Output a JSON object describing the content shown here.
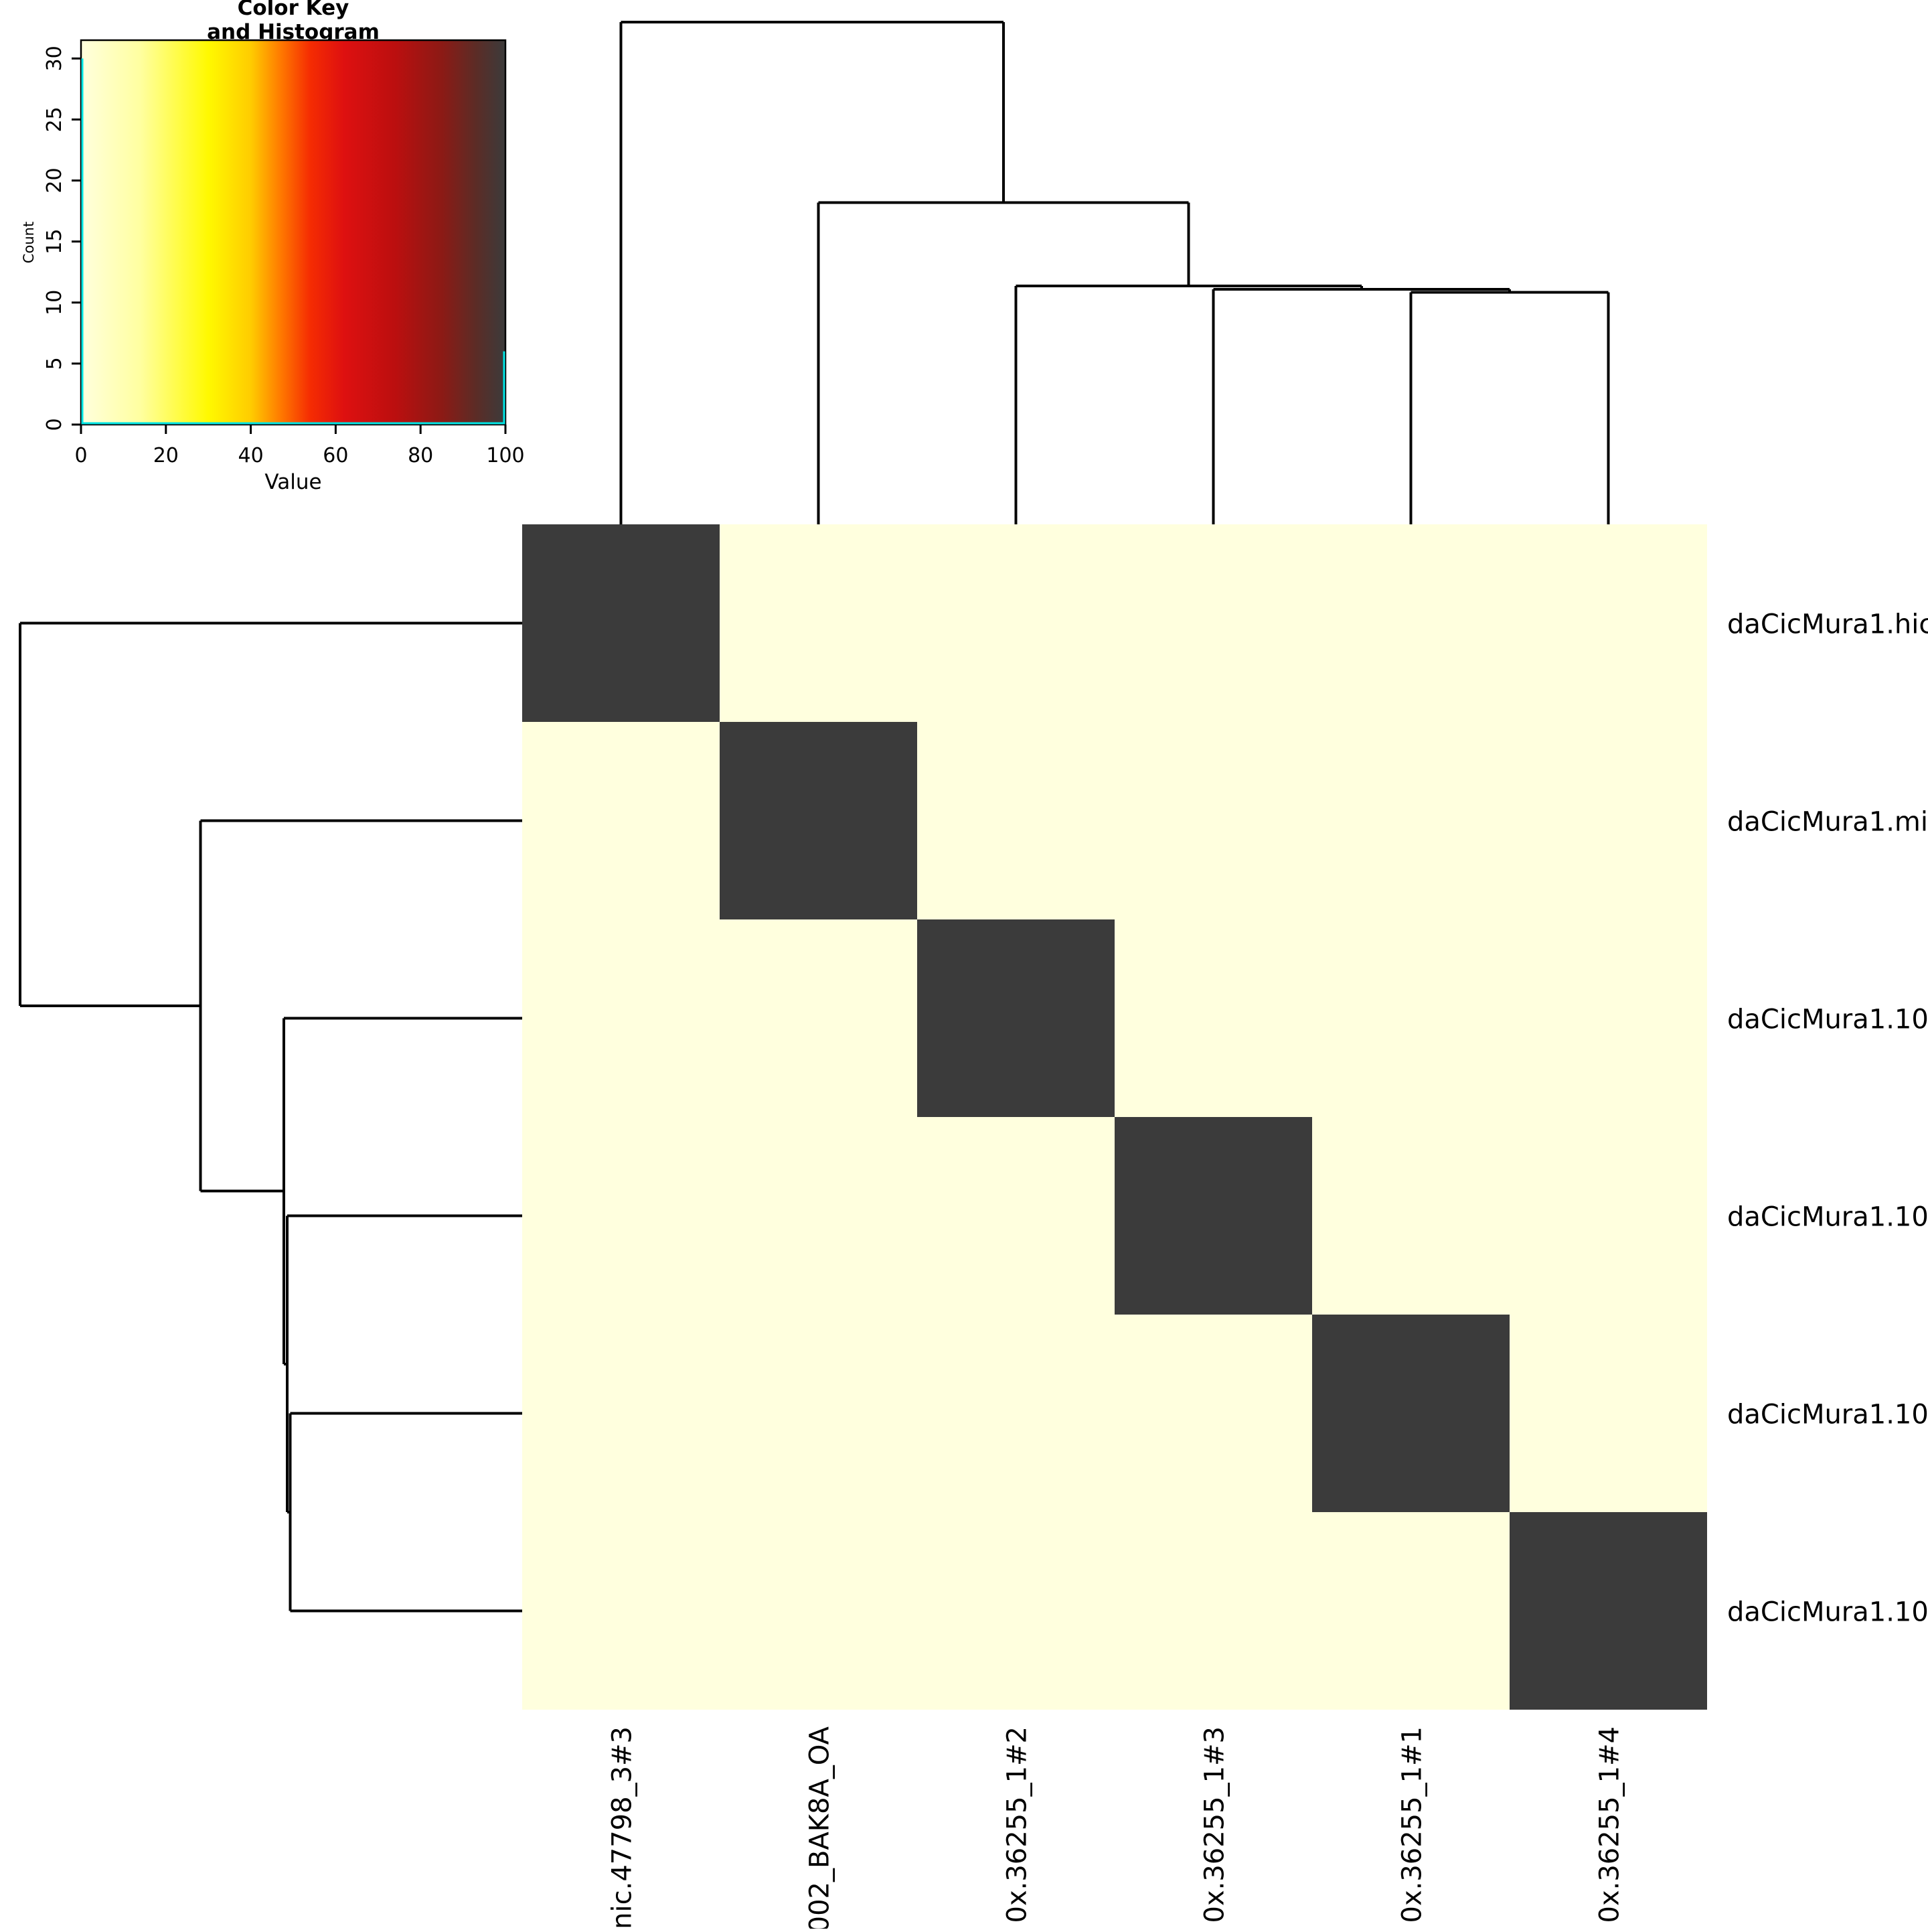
{
  "chart_data": {
    "type": "heatmap",
    "title_line1": "Color Key",
    "title_line2": "and Histogram",
    "key": {
      "x_label": "Value",
      "y_label": "Count",
      "x_ticks": [
        0,
        20,
        40,
        60,
        80,
        100
      ],
      "y_ticks": [
        0,
        5,
        10,
        15,
        20,
        25,
        30
      ],
      "x_range": [
        0,
        100
      ],
      "y_range": [
        0,
        31.5
      ],
      "histogram": {
        "values": [
          0,
          100
        ],
        "counts": [
          30,
          6
        ]
      },
      "trace_color": "#00E5E5"
    },
    "gradient": [
      {
        "pos": 0.0,
        "color": "#FFFFDE"
      },
      {
        "pos": 0.14,
        "color": "#FFFFA0"
      },
      {
        "pos": 0.3,
        "color": "#FFF900"
      },
      {
        "pos": 0.4,
        "color": "#FFCC00"
      },
      {
        "pos": 0.47,
        "color": "#FF7A00"
      },
      {
        "pos": 0.54,
        "color": "#F52C02"
      },
      {
        "pos": 0.62,
        "color": "#DE1010"
      },
      {
        "pos": 0.74,
        "color": "#BB0F0F"
      },
      {
        "pos": 0.85,
        "color": "#8C1A15"
      },
      {
        "pos": 0.93,
        "color": "#5C2C26"
      },
      {
        "pos": 1.0,
        "color": "#3B3B3B"
      }
    ],
    "cell_colors": {
      "diagonal": "#3B3B3B",
      "off_diagonal": "#FFFFDE"
    },
    "value_range": [
      0,
      100
    ],
    "matrix": [
      [
        100,
        0,
        0,
        0,
        0,
        0
      ],
      [
        0,
        100,
        0,
        0,
        0,
        0
      ],
      [
        0,
        0,
        100,
        0,
        0,
        0
      ],
      [
        0,
        0,
        0,
        100,
        0,
        0
      ],
      [
        0,
        0,
        0,
        0,
        100,
        0
      ],
      [
        0,
        0,
        0,
        0,
        0,
        100
      ]
    ],
    "row_labels": [
      "daCicMura1.hic",
      "daCicMura1.mi",
      "daCicMura1.10",
      "daCicMura1.10",
      "daCicMura1.10",
      "daCicMura1.10"
    ],
    "col_labels": [
      "nic.47798_3#3",
      "002_BAK8A_OA",
      "0x.36255_1#2",
      "0x.36255_1#3",
      "0x.36255_1#1",
      "0x.36255_1#4"
    ],
    "dendrogram": {
      "h": 1.0,
      "c": [
        {
          "leaf": 0
        },
        {
          "h": 0.641,
          "c": [
            {
              "leaf": 1
            },
            {
              "h": 0.475,
              "c": [
                {
                  "leaf": 2
                },
                {
                  "h": 0.468,
                  "c": [
                    {
                      "leaf": 3
                    },
                    {
                      "h": 0.462,
                      "c": [
                        {
                          "leaf": 4
                        },
                        {
                          "leaf": 5
                        }
                      ]
                    }
                  ]
                }
              ]
            }
          ]
        }
      ]
    },
    "line_color": "#000000",
    "background": "#FFFFFF"
  }
}
